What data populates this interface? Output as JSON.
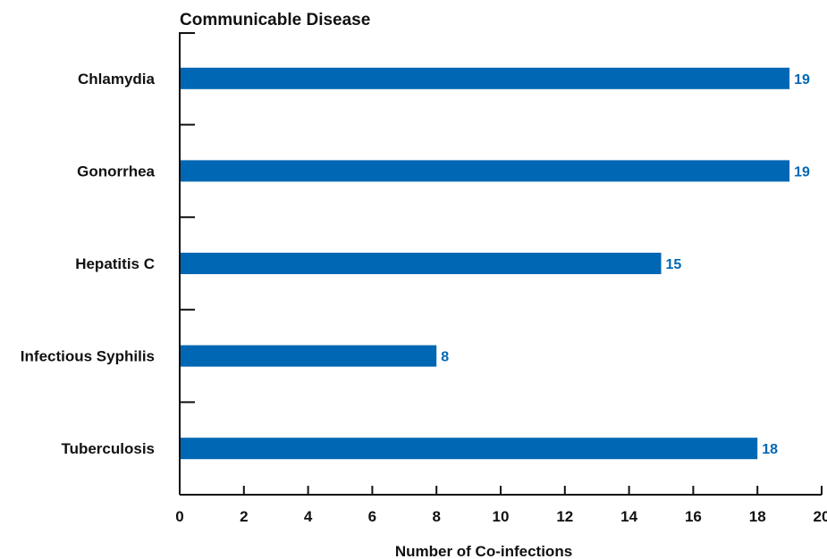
{
  "chart_data": {
    "type": "bar",
    "orientation": "horizontal",
    "title": "Communicable Disease",
    "xlabel": "Number of Co-infections",
    "ylabel": "",
    "categories": [
      "Chlamydia",
      "Gonorrhea",
      "Hepatitis C",
      "Infectious Syphilis",
      "Tuberculosis"
    ],
    "values": [
      19,
      19,
      15,
      8,
      18
    ],
    "value_labels": [
      "19",
      "19",
      "15",
      "8",
      "18"
    ],
    "xlim": [
      0,
      20
    ],
    "xticks": [
      0,
      2,
      4,
      6,
      8,
      10,
      12,
      14,
      16,
      18,
      20
    ],
    "xtick_labels": [
      "0",
      "2",
      "4",
      "6",
      "8",
      "10",
      "12",
      "14",
      "16",
      "18",
      "20"
    ],
    "grid": false,
    "legend": "none",
    "colors": {
      "bar": "#0067b4",
      "value_label": "#0067b4",
      "axis": "#111111"
    }
  }
}
